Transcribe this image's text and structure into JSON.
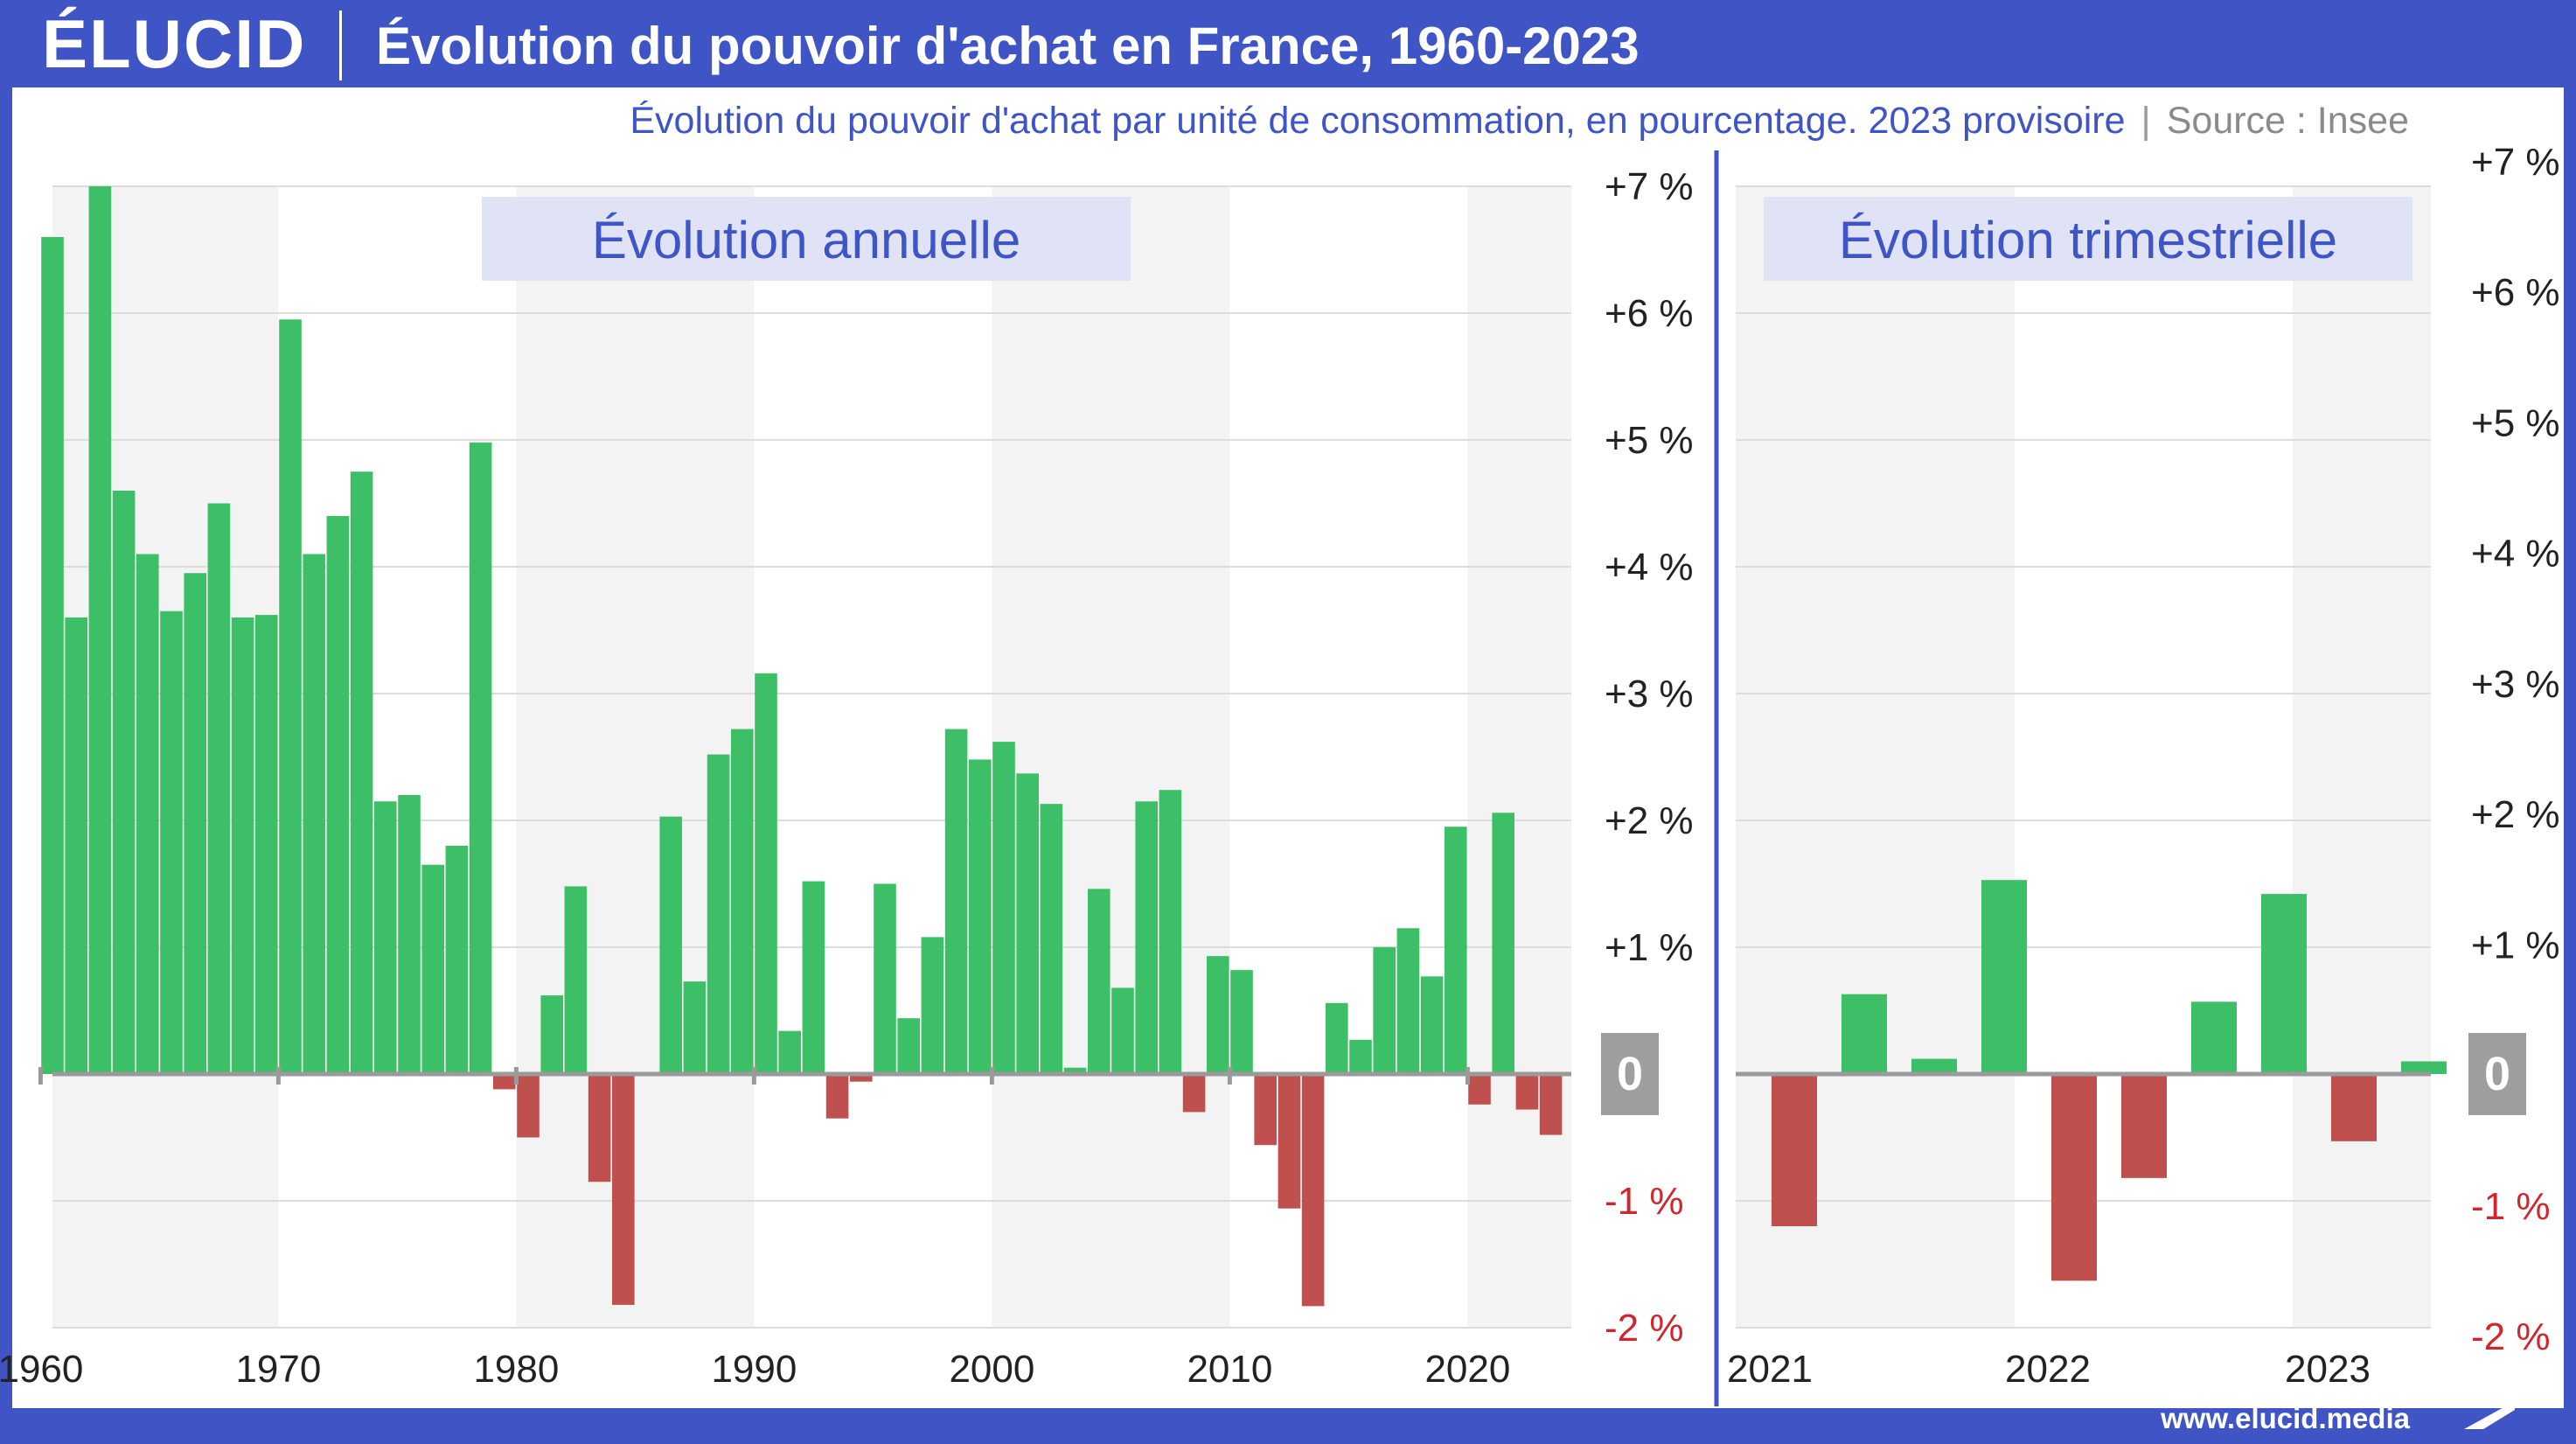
{
  "header": {
    "logo": "ÉLUCID",
    "title": "Évolution du pouvoir d'achat en France, 1960-2023"
  },
  "subtitle": {
    "text": "Évolution du pouvoir d'achat par unité de consommation, en pourcentage. 2023 provisoire",
    "separator": "|",
    "source": "Source : Insee"
  },
  "footer": {
    "url": "www.elucid.media"
  },
  "colors": {
    "positive": "#3dbf67",
    "negative": "#c0504d",
    "brand": "#3f55c6",
    "panel_title_bg": "#dfe3f5",
    "zero_badge": "#9e9e9e",
    "band": "#f3f3f3"
  },
  "chart_data": [
    {
      "type": "bar",
      "title": "Évolution annuelle",
      "x_tick_labels": [
        "1960",
        "1970",
        "1980",
        "1990",
        "2000",
        "2010",
        "2020"
      ],
      "x": [
        1960,
        1961,
        1962,
        1963,
        1964,
        1965,
        1966,
        1967,
        1968,
        1969,
        1970,
        1971,
        1972,
        1973,
        1974,
        1975,
        1976,
        1977,
        1978,
        1979,
        1980,
        1981,
        1982,
        1983,
        1984,
        1985,
        1986,
        1987,
        1988,
        1989,
        1990,
        1991,
        1992,
        1993,
        1994,
        1995,
        1996,
        1997,
        1998,
        1999,
        2000,
        2001,
        2002,
        2003,
        2004,
        2005,
        2006,
        2007,
        2008,
        2009,
        2010,
        2011,
        2012,
        2013,
        2014,
        2015,
        2016,
        2017,
        2018,
        2019,
        2020,
        2021,
        2022,
        2023
      ],
      "values": [
        6.6,
        3.6,
        7.0,
        4.6,
        4.1,
        3.65,
        3.95,
        4.5,
        3.6,
        3.62,
        5.95,
        4.1,
        4.4,
        4.75,
        2.15,
        2.2,
        1.65,
        1.8,
        4.98,
        -0.12,
        -0.5,
        0.62,
        1.48,
        -0.85,
        -1.82,
        0.0,
        2.03,
        0.73,
        2.52,
        2.72,
        3.16,
        0.34,
        1.52,
        -0.35,
        -0.06,
        1.5,
        0.44,
        1.08,
        2.72,
        2.48,
        2.62,
        2.37,
        2.13,
        0.05,
        1.46,
        0.68,
        2.15,
        2.24,
        -0.3,
        0.93,
        0.82,
        -0.56,
        -1.06,
        -1.83,
        0.56,
        0.27,
        1.0,
        1.15,
        0.77,
        1.95,
        -0.24,
        2.06,
        -0.28,
        -0.48
      ],
      "y_tick_labels": [
        "+7 %",
        "+6 %",
        "+5 %",
        "+4 %",
        "+3 %",
        "+2 %",
        "+1 %",
        "0",
        "-1 %",
        "-2 %"
      ],
      "ylim": [
        -2,
        7
      ]
    },
    {
      "type": "bar",
      "title": "Évolution trimestrielle",
      "x_tick_labels": [
        "2021",
        "2022",
        "2023"
      ],
      "x": [
        "2021-T1",
        "2021-T2",
        "2021-T3",
        "2021-T4",
        "2022-T1",
        "2022-T2",
        "2022-T3",
        "2022-T4",
        "2023-T1",
        "2023-T2"
      ],
      "values": [
        -1.2,
        0.63,
        0.12,
        1.53,
        -1.63,
        -0.82,
        0.57,
        1.42,
        -0.53,
        0.1
      ],
      "y_tick_labels": [
        "+7 %",
        "+6 %",
        "+5 %",
        "+4 %",
        "+3 %",
        "+2 %",
        "+1 %",
        "0",
        "-1 %",
        "-2 %"
      ],
      "ylim": [
        -2,
        7
      ]
    }
  ]
}
